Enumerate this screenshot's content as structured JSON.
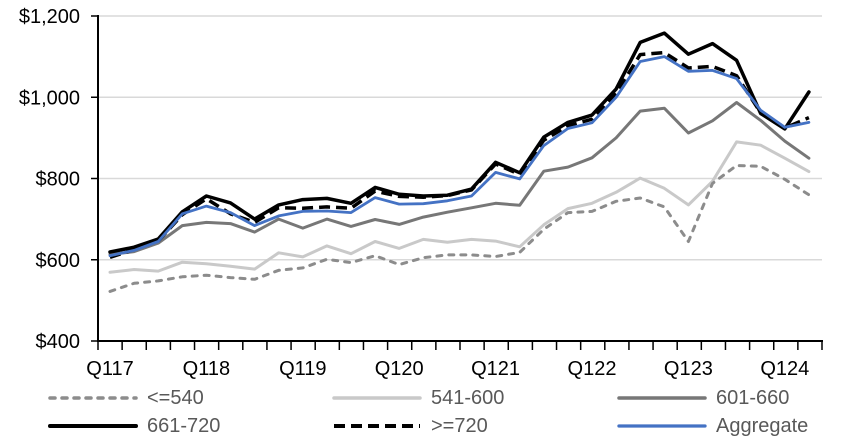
{
  "chart_data": {
    "type": "line",
    "title": "",
    "xlabel": "",
    "ylabel": "",
    "ylim": [
      400,
      1200
    ],
    "grid": "horizontal",
    "legend_position": "bottom",
    "categories": [
      "Q117",
      "Q217",
      "Q317",
      "Q417",
      "Q118",
      "Q218",
      "Q318",
      "Q418",
      "Q119",
      "Q219",
      "Q319",
      "Q419",
      "Q120",
      "Q220",
      "Q320",
      "Q420",
      "Q121",
      "Q221",
      "Q321",
      "Q421",
      "Q122",
      "Q222",
      "Q322",
      "Q422",
      "Q123",
      "Q223",
      "Q323",
      "Q423",
      "Q124",
      "Q224"
    ],
    "x_tick_labels": [
      "Q117",
      "Q118",
      "Q119",
      "Q120",
      "Q121",
      "Q122",
      "Q123",
      "Q124"
    ],
    "y_ticks": [
      {
        "value": 400,
        "label": "$400"
      },
      {
        "value": 600,
        "label": "$600"
      },
      {
        "value": 800,
        "label": "$800"
      },
      {
        "value": 1000,
        "label": "$1,000"
      },
      {
        "value": 1200,
        "label": "$1,200"
      }
    ],
    "series": [
      {
        "name": "<=540",
        "color": "#8c8c8c",
        "style": "dashed",
        "dash_pattern": "5 7",
        "linecap": "round",
        "width": 3,
        "values": [
          522,
          542,
          548,
          558,
          562,
          556,
          552,
          574,
          580,
          601,
          593,
          610,
          588,
          605,
          612,
          612,
          608,
          618,
          675,
          716,
          719,
          744,
          752,
          730,
          645,
          788,
          832,
          830,
          798,
          760
        ]
      },
      {
        "name": "541-600",
        "color": "#c9c9c9",
        "style": "solid",
        "dash_pattern": null,
        "linecap": "round",
        "width": 3,
        "values": [
          569,
          576,
          572,
          594,
          590,
          584,
          577,
          617,
          607,
          634,
          615,
          645,
          628,
          650,
          643,
          650,
          646,
          632,
          686,
          726,
          739,
          766,
          801,
          776,
          735,
          793,
          890,
          882,
          850,
          817
        ]
      },
      {
        "name": "601-660",
        "color": "#777777",
        "style": "solid",
        "dash_pattern": null,
        "linecap": "round",
        "width": 3,
        "values": [
          613,
          620,
          641,
          684,
          692,
          689,
          668,
          700,
          678,
          700,
          682,
          699,
          687,
          705,
          717,
          728,
          739,
          734,
          818,
          828,
          851,
          900,
          966,
          973,
          912,
          942,
          987,
          943,
          892,
          850
        ]
      },
      {
        "name": "661-720",
        "color": "#000000",
        "style": "solid",
        "dash_pattern": null,
        "linecap": "round",
        "width": 3.5,
        "values": [
          619,
          631,
          651,
          718,
          757,
          740,
          700,
          735,
          748,
          751,
          739,
          778,
          761,
          757,
          759,
          774,
          840,
          814,
          902,
          938,
          956,
          1020,
          1135,
          1158,
          1106,
          1132,
          1091,
          960,
          922,
          1013
        ]
      },
      {
        "name": ">=720",
        "color": "#000000",
        "style": "dashed",
        "dash_pattern": "11 6",
        "linecap": "butt",
        "width": 3.5,
        "values": [
          606,
          625,
          646,
          711,
          750,
          713,
          692,
          728,
          727,
          730,
          727,
          769,
          756,
          754,
          758,
          772,
          836,
          810,
          894,
          930,
          946,
          1010,
          1105,
          1110,
          1072,
          1076,
          1053,
          962,
          924,
          950
        ]
      },
      {
        "name": "Aggregate",
        "color": "#4472c4",
        "style": "solid",
        "dash_pattern": null,
        "linecap": "round",
        "width": 2.8,
        "values": [
          610,
          623,
          645,
          713,
          732,
          716,
          684,
          708,
          719,
          720,
          716,
          753,
          737,
          738,
          745,
          757,
          815,
          799,
          881,
          923,
          937,
          1000,
          1088,
          1100,
          1064,
          1066,
          1046,
          968,
          926,
          938
        ]
      }
    ],
    "draw_order": [
      1,
      0,
      2,
      3,
      4,
      5
    ],
    "axis_color": "#000000",
    "gridline_color": "#d9d9d9"
  }
}
